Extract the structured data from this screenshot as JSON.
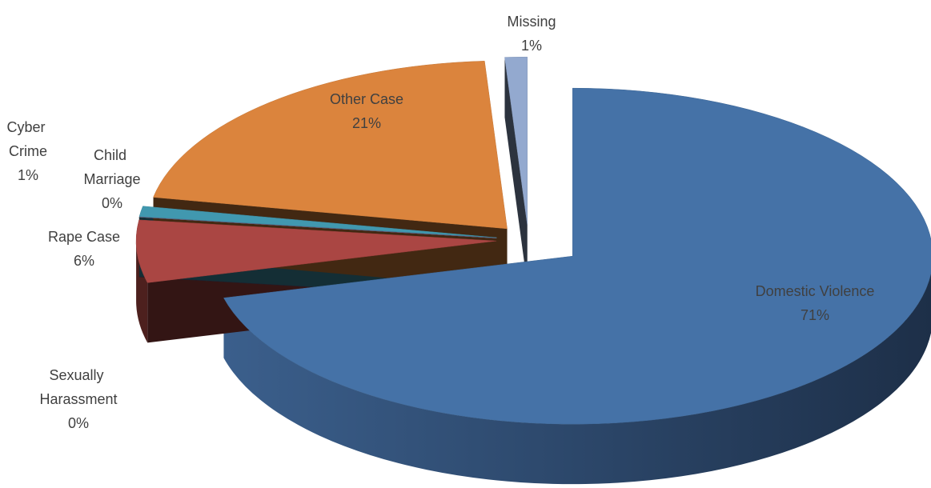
{
  "chart_data": {
    "type": "pie3d",
    "categories": [
      "Domestic Violence",
      "Rape Case",
      "Sexually Harassment",
      "Child Marriage",
      "Cyber Crime",
      "Other Case",
      "Missing"
    ],
    "values": [
      71,
      6,
      0,
      0,
      1,
      21,
      1
    ],
    "value_labels": [
      "71%",
      "6%",
      "0%",
      "0%",
      "1%",
      "21%",
      "1%"
    ],
    "colors": [
      "#4572a7",
      "#aa4643",
      "#89a54e",
      "#71588f",
      "#4198af",
      "#db843d",
      "#93a9cf"
    ]
  }
}
